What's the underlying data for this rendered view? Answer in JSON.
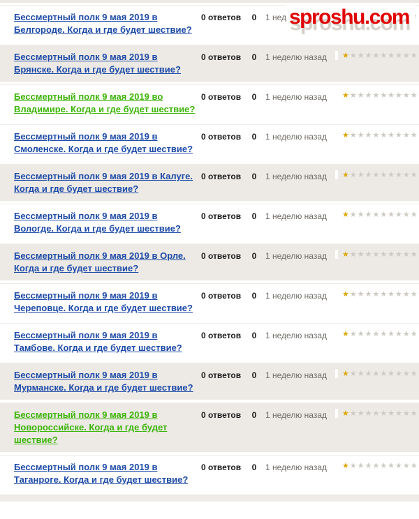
{
  "site": {
    "logo_text": "sproshu.com"
  },
  "colors": {
    "link": "#1d4aa7",
    "visited": "#3cb407",
    "star_gold": "#dfa706",
    "star_empty": "#cdc9c3",
    "row_shade": "#edeae6",
    "logo_red": "#e10404",
    "logo_shadow": "#d4cec6",
    "text_dark": "#1a1a1a",
    "text_gray": "#6f6b66"
  },
  "rating_scale": {
    "max": 10
  },
  "questions": [
    {
      "title": "Бессмертный полк 9 мая 2019 в Белгороде. Когда и где будет шествие?",
      "answers_label": "0 ответов",
      "votes": "0",
      "age": "1 неделю назад",
      "rating": 1,
      "shaded": false,
      "visited": false
    },
    {
      "title": "Бессмертный полк 9 мая 2019 в Брянске. Когда и где будет шествие?",
      "answers_label": "0 ответов",
      "votes": "0",
      "age": "1 неделю назад",
      "rating": 1,
      "shaded": true,
      "visited": false
    },
    {
      "title": "Бессмертный полк 9 мая 2019 во Владимире. Когда и где будет шествие?",
      "answers_label": "0 ответов",
      "votes": "0",
      "age": "1 неделю назад",
      "rating": 1,
      "shaded": false,
      "visited": true
    },
    {
      "title": "Бессмертный полк 9 мая 2019 в Смоленске. Когда и где будет шествие?",
      "answers_label": "0 ответов",
      "votes": "0",
      "age": "1 неделю назад",
      "rating": 1,
      "shaded": false,
      "visited": false
    },
    {
      "title": "Бессмертный полк 9 мая 2019 в Калуге. Когда и где будет шествие?",
      "answers_label": "0 ответов",
      "votes": "0",
      "age": "1 неделю назад",
      "rating": 1,
      "shaded": true,
      "visited": false
    },
    {
      "title": "Бессмертный полк 9 мая 2019 в Вологде. Когда и где будет шествие?",
      "answers_label": "0 ответов",
      "votes": "0",
      "age": "1 неделю назад",
      "rating": 1,
      "shaded": false,
      "visited": false
    },
    {
      "title": "Бессмертный полк 9 мая 2019 в Орле. Когда и где будет шествие?",
      "answers_label": "0 ответов",
      "votes": "0",
      "age": "1 неделю назад",
      "rating": 1,
      "shaded": true,
      "visited": false
    },
    {
      "title": "Бессмертный полк 9 мая 2019 в Череповце. Когда и где будет шествие?",
      "answers_label": "0 ответов",
      "votes": "0",
      "age": "1 неделю назад",
      "rating": 1,
      "shaded": false,
      "visited": false
    },
    {
      "title": "Бессмертный полк 9 мая 2019 в Тамбове. Когда и где будет шествие?",
      "answers_label": "0 ответов",
      "votes": "0",
      "age": "1 неделю назад",
      "rating": 1,
      "shaded": false,
      "visited": false
    },
    {
      "title": "Бессмертный полк 9 мая 2019 в Мурманске. Когда и где будет шествие?",
      "answers_label": "0 ответов",
      "votes": "0",
      "age": "1 неделю назад",
      "rating": 1,
      "shaded": true,
      "visited": false
    },
    {
      "title": "Бессмертный полк 9 мая 2019 в Новороссийске. Когда и где будет шествие?",
      "answers_label": "0 ответов",
      "votes": "0",
      "age": "1 неделю назад",
      "rating": 1,
      "shaded": true,
      "visited": true
    },
    {
      "title": "Бессмертный полк 9 мая 2019 в Таганроге. Когда и где будет шествие?",
      "answers_label": "0 ответов",
      "votes": "0",
      "age": "1 неделю назад",
      "rating": 1,
      "shaded": false,
      "visited": false
    }
  ]
}
